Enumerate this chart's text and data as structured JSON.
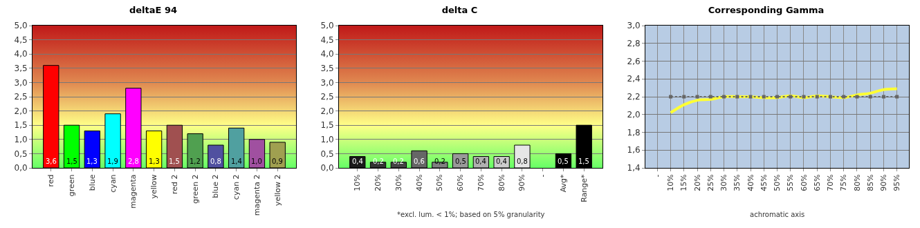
{
  "chart_data": [
    {
      "type": "bar",
      "title": "deltaE 94",
      "categories": [
        "red",
        "green",
        "blue",
        "cyan",
        "magenta",
        "yellow",
        "red 2",
        "green 2",
        "blue 2",
        "cyan 2",
        "magenta 2",
        "yellow 2"
      ],
      "values": [
        3.6,
        1.5,
        1.3,
        1.9,
        2.8,
        1.3,
        1.5,
        1.2,
        0.8,
        1.4,
        1.0,
        0.9
      ],
      "colors": [
        "#ff0000",
        "#00ff00",
        "#0000ff",
        "#00ffff",
        "#ff00ff",
        "#ffff00",
        "#a05050",
        "#50a050",
        "#5050a0",
        "#50a0a0",
        "#a050a0",
        "#a0a050"
      ],
      "value_labels": [
        "3,6",
        "1,5",
        "1,3",
        "1,9",
        "2,8",
        "1,3",
        "1,5",
        "1,2",
        "0,8",
        "1,4",
        "1,0",
        "0,9"
      ],
      "ylim": [
        0,
        5
      ],
      "yticks": [
        {
          "value": 0,
          "label": "0,0"
        },
        {
          "value": 0.5,
          "label": "0,5"
        },
        {
          "value": 1,
          "label": "1,0"
        },
        {
          "value": 1.5,
          "label": "1,5"
        },
        {
          "value": 2,
          "label": "2,0"
        },
        {
          "value": 2.5,
          "label": "2,5"
        },
        {
          "value": 3,
          "label": "3,0"
        },
        {
          "value": 3.5,
          "label": "3,5"
        },
        {
          "value": 4,
          "label": "4,0"
        },
        {
          "value": 4.5,
          "label": "4,5"
        },
        {
          "value": 5,
          "label": "5,0"
        }
      ],
      "grid": "y"
    },
    {
      "type": "bar",
      "title": "delta C",
      "categories": [
        "10%",
        "20%",
        "30%",
        "40%",
        "50%",
        "60%",
        "70%",
        "80%",
        "90%",
        "-",
        "Avg*",
        "Range*"
      ],
      "values": [
        0.4,
        0.2,
        0.2,
        0.6,
        0.2,
        0.5,
        0.4,
        0.4,
        0.8,
        null,
        0.5,
        1.5
      ],
      "colors": [
        "#1a1a1a",
        "#333333",
        "#444444",
        "#666666",
        "#808080",
        "#999999",
        "#b0b0b0",
        "#cccccc",
        "#e6e6e6",
        "#000000",
        "#000000",
        "#000000"
      ],
      "value_labels": [
        "0,4",
        "0,2",
        "0,2",
        "0,6",
        "0,2",
        "0,5",
        "0,4",
        "0,4",
        "0,8",
        null,
        "0,5",
        "1,5"
      ],
      "ylim": [
        0,
        5
      ],
      "yticks": [
        {
          "value": 0,
          "label": "0,0"
        },
        {
          "value": 0.5,
          "label": "0,5"
        },
        {
          "value": 1,
          "label": "1,0"
        },
        {
          "value": 1.5,
          "label": "1,5"
        },
        {
          "value": 2,
          "label": "2,0"
        },
        {
          "value": 2.5,
          "label": "2,5"
        },
        {
          "value": 3,
          "label": "3,0"
        },
        {
          "value": 3.5,
          "label": "3,5"
        },
        {
          "value": 4,
          "label": "4,0"
        },
        {
          "value": 4.5,
          "label": "4,5"
        },
        {
          "value": 5,
          "label": "5,0"
        }
      ],
      "annotations": [
        "*excl. lum. < 1%; based on 5% granularity"
      ],
      "grid": "y"
    },
    {
      "type": "line",
      "title": "Corresponding Gamma",
      "xlabel": "achromatic axis",
      "categories": [
        "-",
        "10%",
        "15%",
        "20%",
        "25%",
        "30%",
        "35%",
        "40%",
        "45%",
        "50%",
        "55%",
        "60%",
        "65%",
        "70%",
        "75%",
        "80%",
        "85%",
        "90%",
        "95%"
      ],
      "series": [
        {
          "color": "#ffff33",
          "line_style": "solid",
          "marker": "none",
          "values": [
            null,
            2.02,
            2.11,
            2.16,
            2.17,
            2.2,
            2.2,
            2.2,
            2.19,
            2.19,
            2.21,
            2.19,
            2.21,
            2.2,
            2.19,
            2.22,
            2.24,
            2.28,
            2.29
          ]
        },
        {
          "color": "#666666",
          "line_style": "dotted",
          "marker": "square",
          "values": [
            null,
            2.2,
            2.2,
            2.2,
            2.2,
            2.2,
            2.2,
            2.2,
            2.2,
            2.2,
            2.2,
            2.2,
            2.2,
            2.2,
            2.2,
            2.2,
            2.2,
            2.2,
            2.2
          ]
        }
      ],
      "ylim": [
        1.4,
        3.0
      ],
      "yticks": [
        {
          "value": 1.4,
          "label": "1,4"
        },
        {
          "value": 1.6,
          "label": "1,6"
        },
        {
          "value": 1.8,
          "label": "1,8"
        },
        {
          "value": 2.0,
          "label": "2,0"
        },
        {
          "value": 2.2,
          "label": "2,2"
        },
        {
          "value": 2.4,
          "label": "2,4"
        },
        {
          "value": 2.6,
          "label": "2,6"
        },
        {
          "value": 2.8,
          "label": "2,8"
        },
        {
          "value": 3.0,
          "label": "3,0"
        }
      ],
      "grid": true
    }
  ]
}
